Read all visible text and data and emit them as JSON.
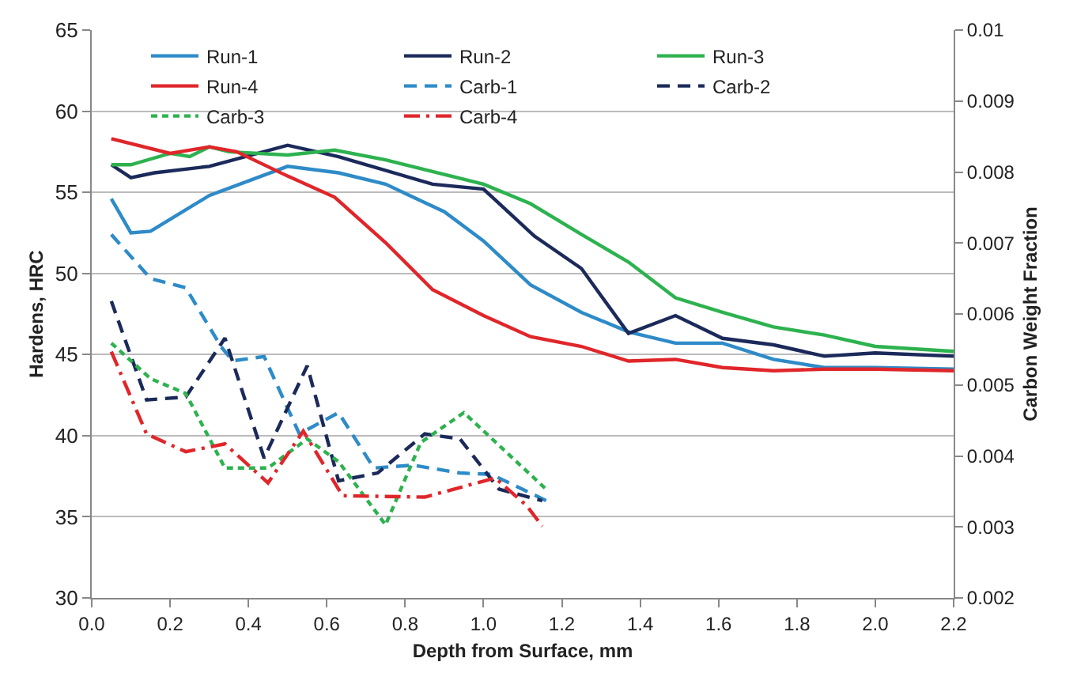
{
  "chart_data": {
    "type": "line",
    "xlabel": "Depth from Surface, mm",
    "ylabel": "Hardens, HRC",
    "y2label": "Carbon Weight Fraction",
    "xlim": [
      0,
      2.2
    ],
    "xticks": [
      {
        "value": 0,
        "label": "0.0"
      },
      0.2,
      0.4,
      0.6,
      0.8,
      {
        "value": 1,
        "label": "1.0"
      },
      1.2,
      1.4,
      1.6,
      1.8,
      {
        "value": 2,
        "label": "2.0"
      },
      2.2
    ],
    "ylim": [
      30,
      65
    ],
    "yticks": [
      30,
      35,
      40,
      45,
      50,
      55,
      60,
      65
    ],
    "y2lim": [
      0.002,
      0.01
    ],
    "y2ticks": [
      0.002,
      0.003,
      0.004,
      0.005,
      0.006,
      0.007,
      0.008,
      0.009,
      0.01
    ],
    "grid": "y",
    "legend": "top",
    "series": [
      {
        "name": "Run-1",
        "color": "#2e8bc8",
        "line_style": "solid",
        "x": [
          0.05,
          0.1,
          0.15,
          0.3,
          0.5,
          0.63,
          0.75,
          0.9,
          1.0,
          1.12,
          1.25,
          1.37,
          1.49,
          1.61,
          1.74,
          1.87,
          2.0,
          2.2
        ],
        "values": [
          54.6,
          52.5,
          52.6,
          54.8,
          56.6,
          56.2,
          55.5,
          53.8,
          52,
          49.3,
          47.6,
          46.4,
          45.7,
          45.7,
          44.7,
          44.2,
          44.2,
          44.1
        ]
      },
      {
        "name": "Run-2",
        "color": "#1b2a5a",
        "line_style": "solid",
        "x": [
          0.05,
          0.1,
          0.16,
          0.3,
          0.5,
          0.63,
          0.87,
          1.0,
          1.13,
          1.25,
          1.37,
          1.49,
          1.61,
          1.74,
          1.87,
          2.0,
          2.2
        ],
        "values": [
          56.7,
          55.9,
          56.2,
          56.6,
          57.9,
          57.2,
          55.5,
          55.2,
          52.3,
          50.3,
          46.3,
          47.4,
          46.0,
          45.6,
          44.9,
          45.1,
          44.9
        ]
      },
      {
        "name": "Run-3",
        "color": "#2db24f",
        "line_style": "solid",
        "x": [
          0.05,
          0.1,
          0.2,
          0.25,
          0.3,
          0.35,
          0.5,
          0.62,
          0.75,
          1.0,
          1.12,
          1.25,
          1.37,
          1.49,
          1.61,
          1.74,
          1.87,
          2.0,
          2.2
        ],
        "values": [
          56.7,
          56.7,
          57.4,
          57.2,
          57.8,
          57.5,
          57.3,
          57.6,
          57.0,
          55.5,
          54.3,
          52.4,
          50.7,
          48.5,
          47.6,
          46.7,
          46.2,
          45.5,
          45.2
        ]
      },
      {
        "name": "Run-4",
        "color": "#e0262a",
        "line_style": "solid",
        "x": [
          0.05,
          0.2,
          0.3,
          0.37,
          0.5,
          0.62,
          0.75,
          0.87,
          1.0,
          1.12,
          1.25,
          1.37,
          1.49,
          1.61,
          1.74,
          1.87,
          2.0,
          2.2
        ],
        "values": [
          58.3,
          57.4,
          57.8,
          57.5,
          56.0,
          54.7,
          51.9,
          49.0,
          47.4,
          46.1,
          45.5,
          44.6,
          44.7,
          44.2,
          44.0,
          44.1,
          44.1,
          44.0
        ]
      },
      {
        "name": "Carb-1",
        "color": "#2e8bc8",
        "line_style": "dashed",
        "axis": "y2",
        "x": [
          0.05,
          0.15,
          0.24,
          0.33,
          0.36,
          0.44,
          0.53,
          0.63,
          0.72,
          0.82,
          0.94,
          1.02,
          1.16
        ],
        "values": [
          0.00712,
          0.0065,
          0.00637,
          0.00554,
          0.00534,
          0.0054,
          0.00431,
          0.00461,
          0.00383,
          0.00387,
          0.00376,
          0.00374,
          0.00337
        ]
      },
      {
        "name": "Carb-2",
        "color": "#1b2a5a",
        "line_style": "dashed",
        "axis": "y2",
        "x": [
          0.05,
          0.14,
          0.24,
          0.34,
          0.44,
          0.55,
          0.63,
          0.73,
          0.85,
          0.94,
          1.04,
          1.15
        ],
        "values": [
          0.00618,
          0.00479,
          0.00483,
          0.00566,
          0.00397,
          0.00527,
          0.00365,
          0.00376,
          0.00431,
          0.00424,
          0.00353,
          0.00337
        ]
      },
      {
        "name": "Carb-3",
        "color": "#2db24f",
        "line_style": "dotted",
        "axis": "y2",
        "x": [
          0.05,
          0.15,
          0.24,
          0.34,
          0.45,
          0.55,
          0.63,
          0.75,
          0.84,
          0.95,
          1.16
        ],
        "values": [
          0.00559,
          0.00509,
          0.00488,
          0.00383,
          0.00383,
          0.00424,
          0.00392,
          0.00303,
          0.00419,
          0.00461,
          0.00353
        ]
      },
      {
        "name": "Carb-4",
        "color": "#e0262a",
        "line_style": "dashdot",
        "axis": "y2",
        "x": [
          0.05,
          0.14,
          0.24,
          0.34,
          0.45,
          0.54,
          0.64,
          0.85,
          1.03,
          1.11,
          1.15
        ],
        "values": [
          0.00547,
          0.00431,
          0.00406,
          0.00417,
          0.00362,
          0.00435,
          0.00344,
          0.00342,
          0.00369,
          0.0033,
          0.00301
        ]
      }
    ]
  }
}
